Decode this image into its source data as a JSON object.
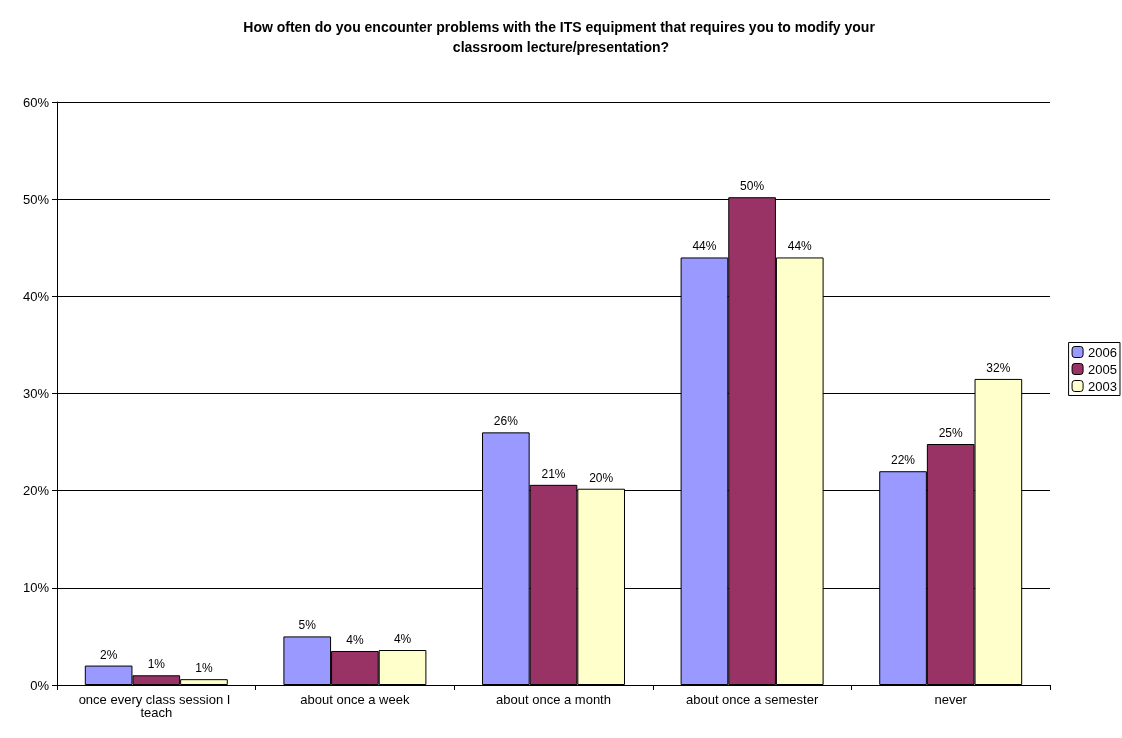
{
  "chart_data": {
    "type": "bar",
    "title": "How often do you encounter problems with the ITS equipment that requires you to modify your classroom lecture/presentation?",
    "categories": [
      "once every class session I teach",
      "about once a week",
      "about once a month",
      "about once a semester",
      "never"
    ],
    "series": [
      {
        "name": "2006",
        "color": "#9999ff",
        "values": [
          2,
          5,
          26,
          44,
          22
        ],
        "value_labels": [
          "2%",
          "5%",
          "26%",
          "44%",
          "22%"
        ]
      },
      {
        "name": "2005",
        "color": "#993366",
        "values": [
          1,
          3.5,
          20.6,
          50.2,
          24.8
        ],
        "value_labels": [
          "1%",
          "4%",
          "21%",
          "50%",
          "25%"
        ]
      },
      {
        "name": "2003",
        "color": "#ffffcc",
        "values": [
          0.6,
          3.6,
          20.2,
          44,
          31.5
        ],
        "value_labels": [
          "1%",
          "4%",
          "20%",
          "44%",
          "32%"
        ]
      }
    ],
    "ylim": [
      0,
      60
    ],
    "yticks": [
      {
        "value": 0,
        "label": "0%"
      },
      {
        "value": 10,
        "label": "10%"
      },
      {
        "value": 20,
        "label": "20%"
      },
      {
        "value": 30,
        "label": "30%"
      },
      {
        "value": 40,
        "label": "40%"
      },
      {
        "value": 50,
        "label": "50%"
      },
      {
        "value": 60,
        "label": "60%"
      }
    ],
    "grid": "y",
    "legend": "right"
  }
}
